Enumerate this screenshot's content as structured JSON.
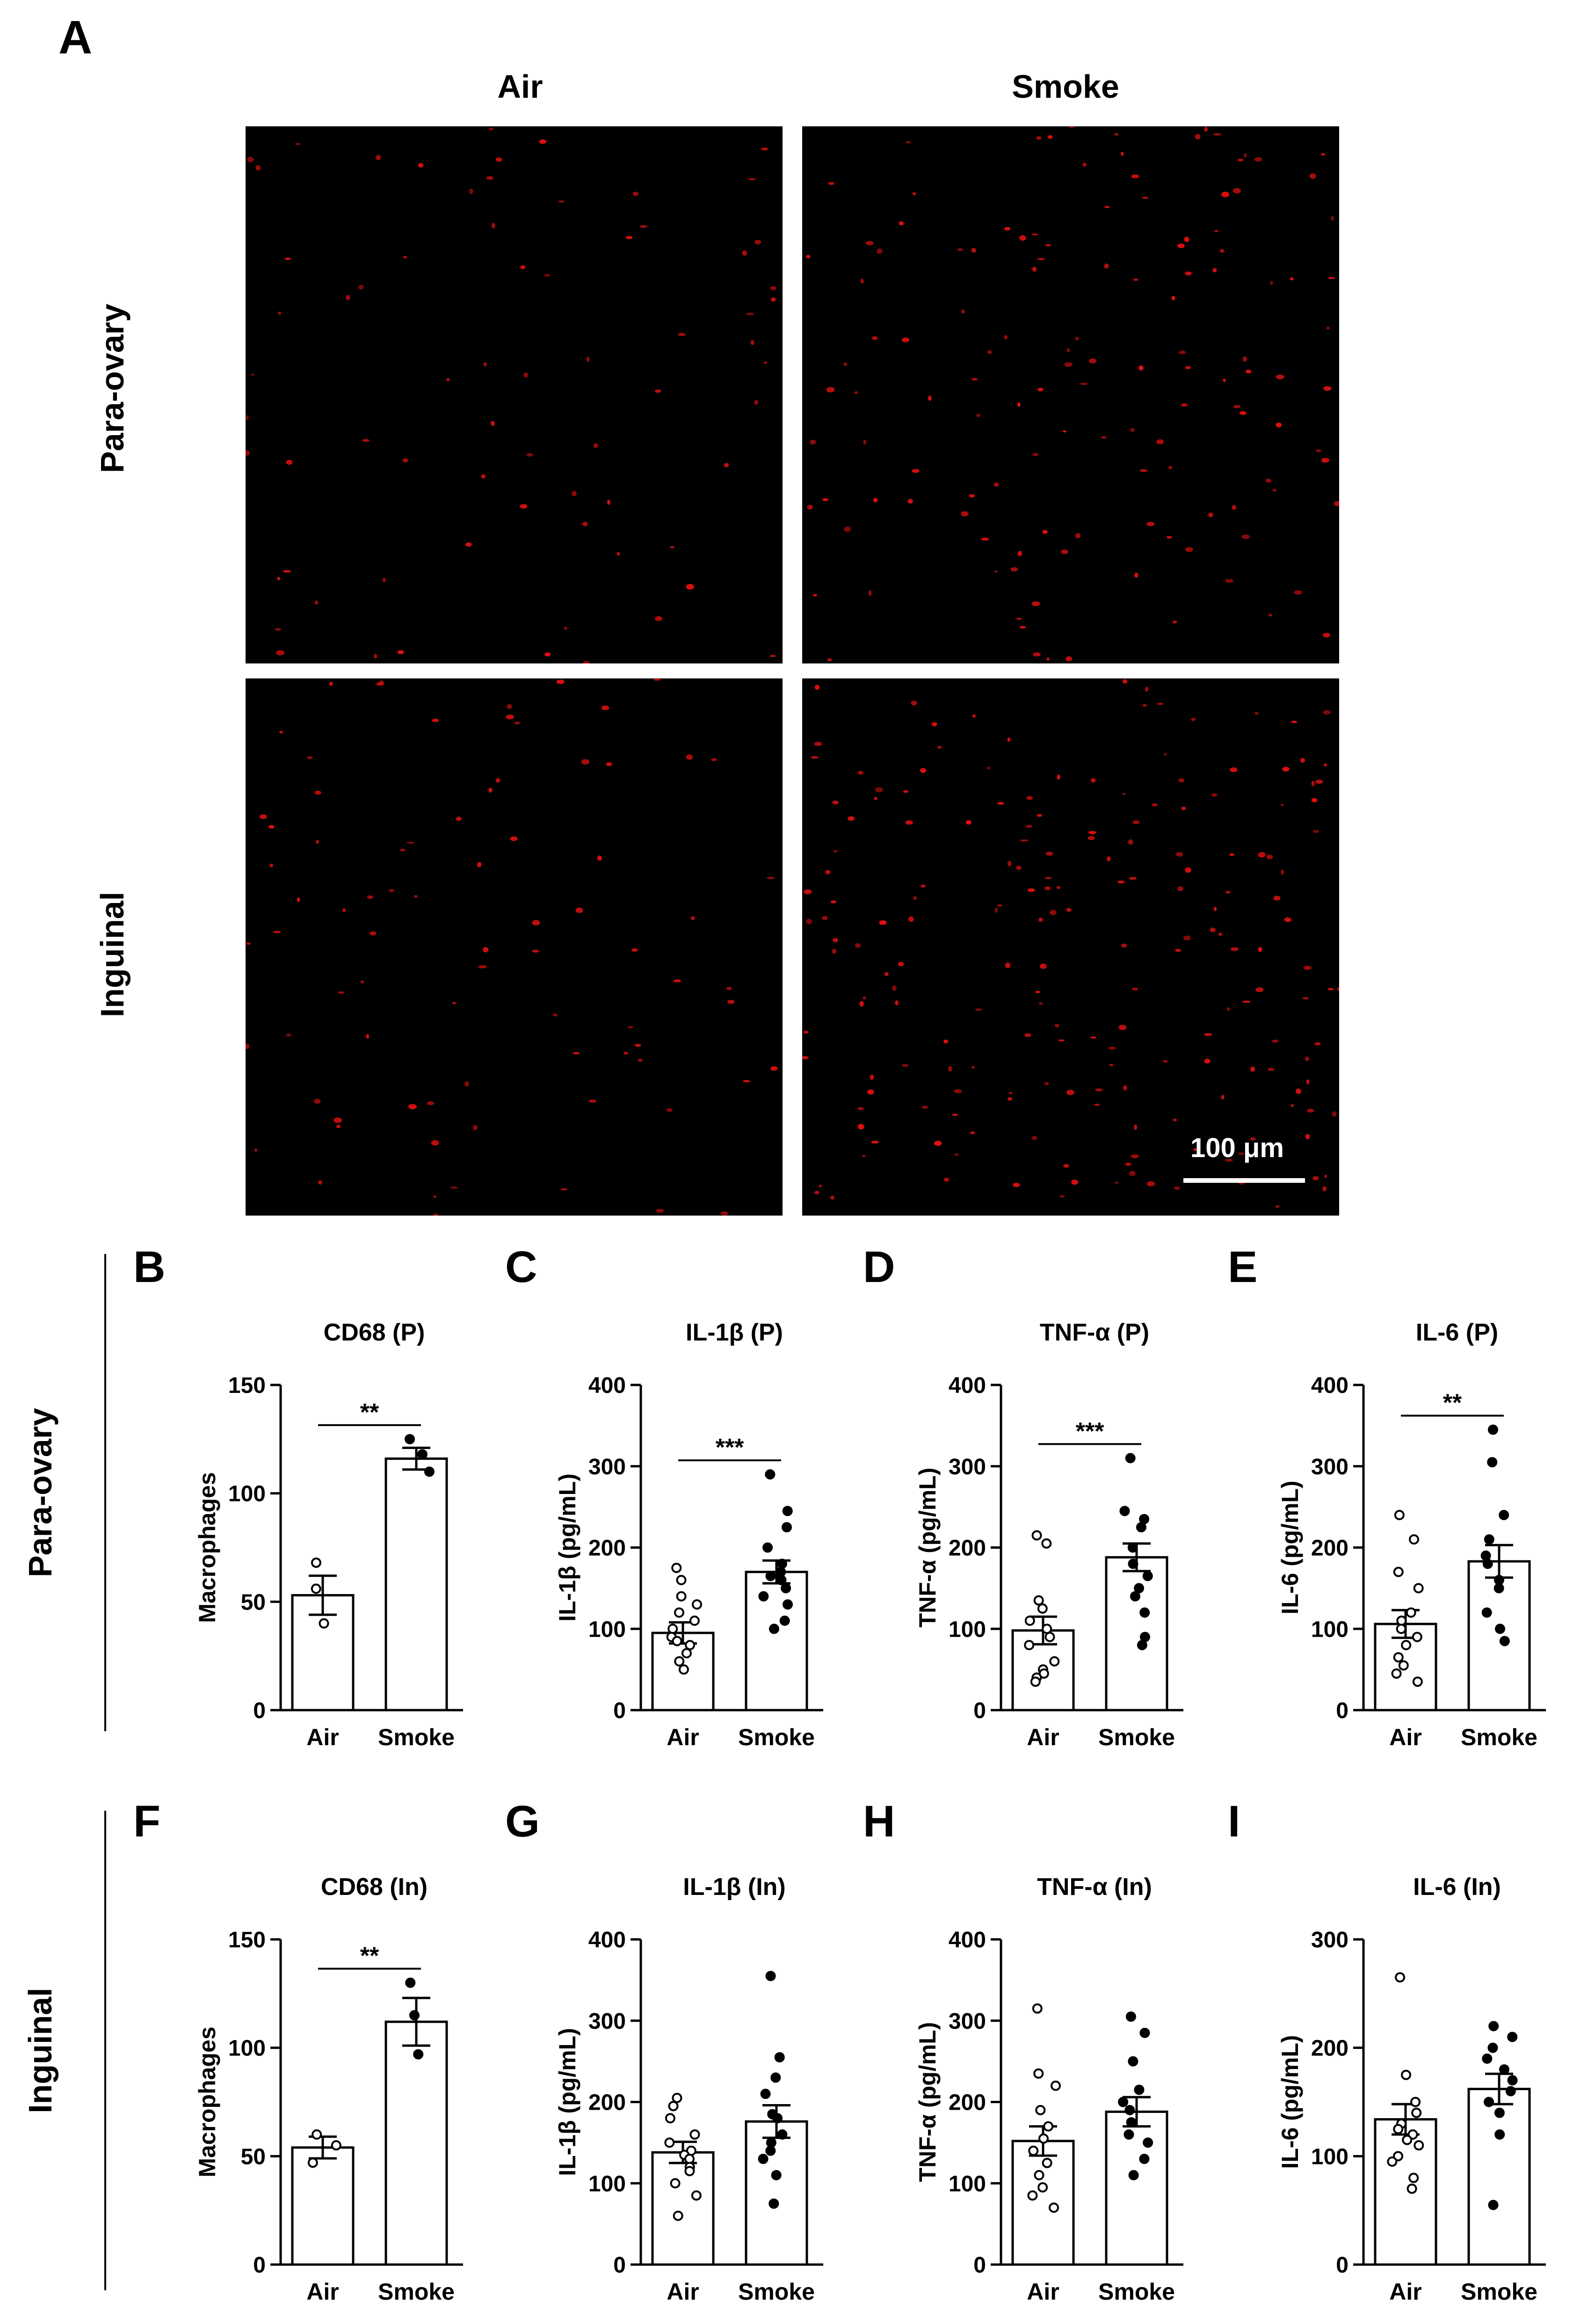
{
  "figure": {
    "panel_A_letter": "A",
    "col_labels": [
      "Air",
      "Smoke"
    ],
    "row_labels": [
      "Para-ovary",
      "Inguinal"
    ],
    "scale_bar_label": "100 μm",
    "group_labels": [
      "Para-ovary",
      "Inguinal"
    ],
    "micrograph_dot_color": "#e01010",
    "micrograph_bg_color": "#000000"
  },
  "chart_data": [
    {
      "letter": "B",
      "type": "bar",
      "title": "CD68 (P)",
      "ylabel": "Macrophages",
      "categories": [
        "Air",
        "Smoke"
      ],
      "ylim": [
        0,
        150
      ],
      "yticks": [
        0,
        50,
        100,
        150
      ],
      "series": [
        {
          "name": "Air",
          "mean": 53,
          "sem": 9,
          "filled": false,
          "points": [
            68,
            56,
            40
          ]
        },
        {
          "name": "Smoke",
          "mean": 116,
          "sem": 5,
          "filled": true,
          "points": [
            125,
            118,
            110
          ]
        }
      ],
      "significance": "**"
    },
    {
      "letter": "C",
      "type": "bar",
      "title": "IL-1β (P)",
      "ylabel": "IL-1β (pg/mL)",
      "categories": [
        "Air",
        "Smoke"
      ],
      "ylim": [
        0,
        400
      ],
      "yticks": [
        0,
        100,
        200,
        300,
        400
      ],
      "series": [
        {
          "name": "Air",
          "mean": 95,
          "sem": 13,
          "filled": false,
          "points": [
            175,
            160,
            140,
            130,
            120,
            110,
            100,
            90,
            85,
            80,
            70,
            60,
            50
          ]
        },
        {
          "name": "Smoke",
          "mean": 170,
          "sem": 14,
          "filled": true,
          "points": [
            290,
            245,
            225,
            200,
            180,
            170,
            165,
            160,
            150,
            140,
            130,
            110,
            100
          ]
        }
      ],
      "significance": "***"
    },
    {
      "letter": "D",
      "type": "bar",
      "title": "TNF-α (P)",
      "ylabel": "TNF-α (pg/mL)",
      "categories": [
        "Air",
        "Smoke"
      ],
      "ylim": [
        0,
        400
      ],
      "yticks": [
        0,
        100,
        200,
        300,
        400
      ],
      "series": [
        {
          "name": "Air",
          "mean": 98,
          "sem": 17,
          "filled": false,
          "points": [
            215,
            205,
            135,
            125,
            110,
            100,
            90,
            80,
            60,
            50,
            45,
            40,
            35
          ]
        },
        {
          "name": "Smoke",
          "mean": 188,
          "sem": 17,
          "filled": true,
          "points": [
            310,
            245,
            235,
            225,
            200,
            180,
            165,
            150,
            140,
            120,
            90,
            80
          ]
        }
      ],
      "significance": "***"
    },
    {
      "letter": "E",
      "type": "bar",
      "title": "IL-6  (P)",
      "ylabel": "IL-6 (pg/mL)",
      "categories": [
        "Air",
        "Smoke"
      ],
      "ylim": [
        0,
        400
      ],
      "yticks": [
        0,
        100,
        200,
        300,
        400
      ],
      "series": [
        {
          "name": "Air",
          "mean": 106,
          "sem": 17,
          "filled": false,
          "points": [
            240,
            210,
            170,
            150,
            120,
            110,
            100,
            90,
            80,
            65,
            55,
            45,
            35
          ]
        },
        {
          "name": "Smoke",
          "mean": 183,
          "sem": 20,
          "filled": true,
          "points": [
            345,
            305,
            240,
            210,
            190,
            180,
            160,
            150,
            120,
            100,
            85
          ]
        }
      ],
      "significance": "**"
    },
    {
      "letter": "F",
      "type": "bar",
      "title": "CD68 (In)",
      "ylabel": "Macrophages",
      "categories": [
        "Air",
        "Smoke"
      ],
      "ylim": [
        0,
        150
      ],
      "yticks": [
        0,
        50,
        100,
        150
      ],
      "series": [
        {
          "name": "Air",
          "mean": 54,
          "sem": 5,
          "filled": false,
          "points": [
            60,
            55,
            47
          ]
        },
        {
          "name": "Smoke",
          "mean": 112,
          "sem": 11,
          "filled": true,
          "points": [
            130,
            115,
            97
          ]
        }
      ],
      "significance": "**"
    },
    {
      "letter": "G",
      "type": "bar",
      "title": "IL-1β (In)",
      "ylabel": "IL-1β (pg/mL)",
      "categories": [
        "Air",
        "Smoke"
      ],
      "ylim": [
        0,
        400
      ],
      "yticks": [
        0,
        100,
        200,
        300,
        400
      ],
      "series": [
        {
          "name": "Air",
          "mean": 138,
          "sem": 13,
          "filled": false,
          "points": [
            205,
            195,
            180,
            160,
            150,
            140,
            135,
            130,
            120,
            115,
            100,
            85,
            60
          ]
        },
        {
          "name": "Smoke",
          "mean": 176,
          "sem": 20,
          "filled": true,
          "points": [
            355,
            255,
            230,
            210,
            185,
            180,
            160,
            150,
            140,
            130,
            110,
            75
          ]
        }
      ],
      "significance": ""
    },
    {
      "letter": "H",
      "type": "bar",
      "title": "TNF-α (In)",
      "ylabel": "TNF-α (pg/mL)",
      "categories": [
        "Air",
        "Smoke"
      ],
      "ylim": [
        0,
        400
      ],
      "yticks": [
        0,
        100,
        200,
        300,
        400
      ],
      "series": [
        {
          "name": "Air",
          "mean": 152,
          "sem": 18,
          "filled": false,
          "points": [
            315,
            235,
            220,
            190,
            170,
            155,
            140,
            125,
            110,
            95,
            85,
            70
          ]
        },
        {
          "name": "Smoke",
          "mean": 188,
          "sem": 18,
          "filled": true,
          "points": [
            305,
            285,
            250,
            215,
            200,
            190,
            175,
            160,
            150,
            130,
            110
          ]
        }
      ],
      "significance": ""
    },
    {
      "letter": "I",
      "type": "bar",
      "title": "IL-6 (In)",
      "ylabel": "IL-6 (pg/mL)",
      "categories": [
        "Air",
        "Smoke"
      ],
      "ylim": [
        0,
        300
      ],
      "yticks": [
        0,
        100,
        200,
        300
      ],
      "series": [
        {
          "name": "Air",
          "mean": 134,
          "sem": 14,
          "filled": false,
          "points": [
            265,
            175,
            150,
            140,
            130,
            125,
            120,
            115,
            110,
            100,
            95,
            80,
            70
          ]
        },
        {
          "name": "Smoke",
          "mean": 162,
          "sem": 14,
          "filled": true,
          "points": [
            220,
            210,
            200,
            190,
            180,
            170,
            160,
            150,
            140,
            120,
            55
          ]
        }
      ],
      "significance": ""
    }
  ]
}
